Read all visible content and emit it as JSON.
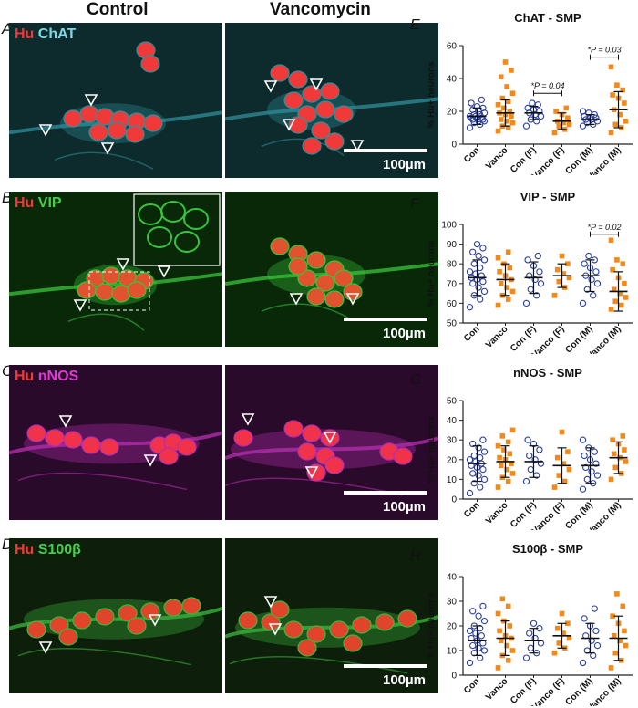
{
  "column_headers": {
    "control": "Control",
    "vancomycin": "Vancomycin"
  },
  "rows": [
    {
      "letter": "A",
      "marker1": "Hu",
      "marker2": "ChAT",
      "marker2_color": "#7fd8e6",
      "bg": "#0d2a2c",
      "cell_color": "#f03a3a",
      "process_color": "#2f8f9a"
    },
    {
      "letter": "B",
      "marker1": "Hu",
      "marker2": "VIP",
      "marker2_color": "#46d04a",
      "bg": "#082808",
      "cell_color": "#e0532e",
      "process_color": "#38c43a"
    },
    {
      "letter": "C",
      "marker1": "Hu",
      "marker2": "nNOS",
      "marker2_color": "#e03ad6",
      "bg": "#2a0a2a",
      "cell_color": "#f0324a",
      "process_color": "#b52fb0"
    },
    {
      "letter": "D",
      "marker1": "Hu",
      "marker2": "S100β",
      "marker2_color": "#46d04a",
      "bg": "#0d1f0a",
      "cell_color": "#e0442a",
      "process_color": "#3cb83e"
    }
  ],
  "scale_bar": "100µm",
  "series_colors": {
    "con": "#2b3f9c",
    "vanco": "#f08a1c"
  },
  "chart_data": [
    {
      "letter": "E",
      "type": "scatter",
      "title": "ChAT - SMP",
      "ylabel": "% Hu+ neurons",
      "ylim": [
        0,
        60
      ],
      "yticks": [
        0,
        20,
        40,
        60
      ],
      "categories": [
        "Con",
        "Vanco",
        "Con (F)",
        "Vanco (F)",
        "Con (M)",
        "Vanco (M)"
      ],
      "stats": [
        {
          "mean": 17,
          "sd": 5
        },
        {
          "mean": 19,
          "sd": 8
        },
        {
          "mean": 19,
          "sd": 4
        },
        {
          "mean": 14,
          "sd": 5
        },
        {
          "mean": 15,
          "sd": 3
        },
        {
          "mean": 21,
          "sd": 11
        }
      ],
      "points": [
        [
          10,
          12,
          13,
          14,
          14,
          15,
          15,
          16,
          16,
          16,
          17,
          17,
          18,
          18,
          19,
          20,
          21,
          22,
          23,
          25,
          27
        ],
        [
          8,
          10,
          11,
          13,
          14,
          15,
          17,
          18,
          19,
          20,
          22,
          24,
          26,
          28,
          31,
          35,
          41,
          45,
          50
        ],
        [
          11,
          14,
          15,
          17,
          18,
          19,
          20,
          21,
          22,
          24,
          25
        ],
        [
          7,
          9,
          11,
          12,
          13,
          14,
          16,
          18,
          20,
          22
        ],
        [
          11,
          12,
          13,
          14,
          15,
          15,
          16,
          16,
          17,
          18,
          19,
          20
        ],
        [
          7,
          10,
          12,
          14,
          18,
          21,
          25,
          28,
          30,
          33,
          36,
          47
        ]
      ],
      "annotations": [
        {
          "text": "*P = 0.04",
          "from": 2,
          "to": 3,
          "y": 31
        },
        {
          "text": "*P = 0.03",
          "from": 4,
          "to": 5,
          "y": 53
        }
      ]
    },
    {
      "letter": "F",
      "type": "scatter",
      "title": "VIP - SMP",
      "ylabel": "% Hu+ neurons",
      "ylim": [
        50,
        100
      ],
      "yticks": [
        50,
        60,
        70,
        80,
        90,
        100
      ],
      "categories": [
        "Con",
        "Vanco",
        "Con (F)",
        "Vanco (F)",
        "Con (M)",
        "Vanco (M)"
      ],
      "stats": [
        {
          "mean": 73,
          "sd": 9
        },
        {
          "mean": 72,
          "sd": 8
        },
        {
          "mean": 73,
          "sd": 8
        },
        {
          "mean": 74,
          "sd": 6
        },
        {
          "mean": 74,
          "sd": 8
        },
        {
          "mean": 66,
          "sd": 10
        }
      ],
      "points": [
        [
          58,
          62,
          64,
          66,
          68,
          70,
          71,
          72,
          73,
          74,
          75,
          76,
          78,
          80,
          82,
          84,
          86,
          88,
          90
        ],
        [
          59,
          62,
          64,
          66,
          68,
          70,
          72,
          74,
          76,
          78,
          80,
          83,
          86
        ],
        [
          60,
          64,
          67,
          70,
          72,
          74,
          76,
          79,
          82,
          84
        ],
        [
          64,
          68,
          71,
          73,
          75,
          77,
          80,
          84
        ],
        [
          60,
          64,
          67,
          70,
          72,
          74,
          76,
          78,
          80,
          82,
          84
        ],
        [
          57,
          59,
          61,
          63,
          65,
          67,
          70,
          73,
          77,
          80,
          82,
          92
        ]
      ],
      "annotations": [
        {
          "text": "*P = 0.02",
          "from": 4,
          "to": 5,
          "y": 95
        }
      ]
    },
    {
      "letter": "G",
      "type": "scatter",
      "title": "nNOS - SMP",
      "ylabel": "% Hu+ neurons",
      "ylim": [
        0,
        50
      ],
      "yticks": [
        0,
        10,
        20,
        30,
        40,
        50
      ],
      "categories": [
        "Con",
        "Vanco",
        "Con (F)",
        "Vanco (F)",
        "Con (M)",
        "Vanco (M)"
      ],
      "stats": [
        {
          "mean": 18,
          "sd": 9
        },
        {
          "mean": 19,
          "sd": 8
        },
        {
          "mean": 19,
          "sd": 8
        },
        {
          "mean": 17,
          "sd": 9
        },
        {
          "mean": 17,
          "sd": 9
        },
        {
          "mean": 21,
          "sd": 8
        }
      ],
      "points": [
        [
          3,
          6,
          8,
          10,
          12,
          13,
          15,
          16,
          17,
          18,
          19,
          20,
          21,
          22,
          24,
          26,
          28,
          30
        ],
        [
          6,
          9,
          11,
          13,
          15,
          17,
          18,
          20,
          21,
          23,
          25,
          27,
          29,
          32,
          35
        ],
        [
          9,
          12,
          15,
          18,
          20,
          22,
          25,
          28,
          30
        ],
        [
          6,
          9,
          12,
          15,
          18,
          21,
          24,
          34
        ],
        [
          5,
          8,
          10,
          12,
          14,
          16,
          18,
          20,
          22,
          24,
          26,
          30
        ],
        [
          10,
          13,
          16,
          19,
          21,
          23,
          25,
          28,
          30,
          32
        ]
      ],
      "annotations": []
    },
    {
      "letter": "H",
      "type": "scatter",
      "title": "S100β - SMP",
      "ylabel": "% Hu+ neurons",
      "ylim": [
        0,
        40
      ],
      "yticks": [
        0,
        10,
        20,
        30,
        40
      ],
      "categories": [
        "Con",
        "Vanco",
        "Con (F)",
        "Vanco (F)",
        "Con (M)",
        "Vanco (M)"
      ],
      "stats": [
        {
          "mean": 14,
          "sd": 6
        },
        {
          "mean": 15,
          "sd": 7
        },
        {
          "mean": 14,
          "sd": 5
        },
        {
          "mean": 16,
          "sd": 5
        },
        {
          "mean": 15,
          "sd": 6
        },
        {
          "mean": 15,
          "sd": 9
        }
      ],
      "points": [
        [
          5,
          7,
          9,
          10,
          11,
          12,
          13,
          14,
          15,
          16,
          17,
          18,
          19,
          20,
          22,
          24,
          26,
          28
        ],
        [
          3,
          6,
          8,
          10,
          12,
          14,
          15,
          16,
          18,
          20,
          22,
          25,
          28,
          31
        ],
        [
          7,
          9,
          11,
          13,
          15,
          17,
          19,
          21
        ],
        [
          9,
          11,
          13,
          15,
          17,
          19,
          21,
          25
        ],
        [
          5,
          8,
          10,
          12,
          14,
          16,
          18,
          20,
          23,
          27
        ],
        [
          3,
          6,
          9,
          12,
          14,
          16,
          18,
          21,
          24,
          28,
          33
        ]
      ],
      "annotations": []
    }
  ]
}
